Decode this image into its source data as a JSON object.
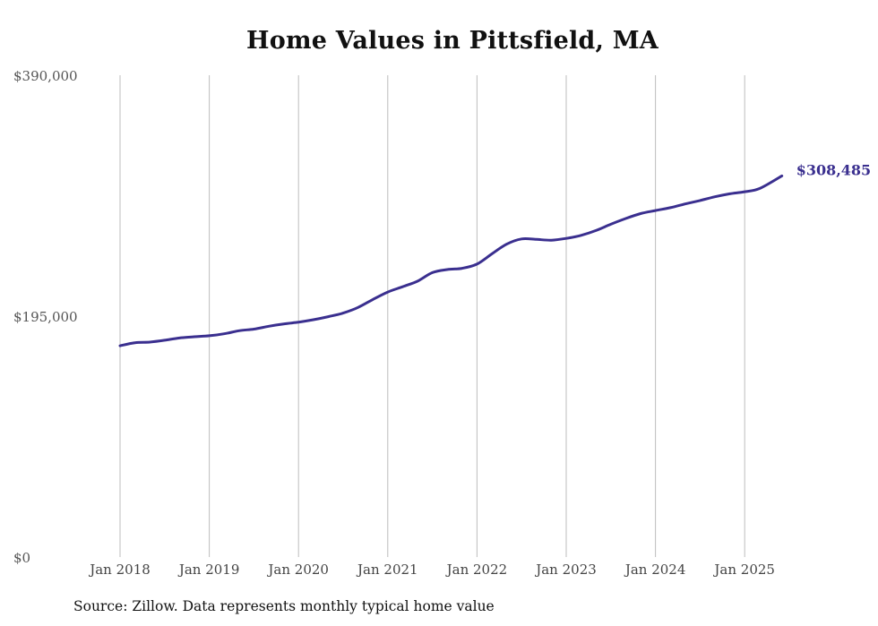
{
  "chart_data": {
    "type": "line",
    "title": "Home Values in Pittsfield, MA",
    "subtitle": "",
    "xlabel": "",
    "ylabel": "",
    "x_date_range": [
      "2018-01",
      "2025-06"
    ],
    "ylim": [
      0,
      390000
    ],
    "y_ticks": [
      0,
      195000,
      390000
    ],
    "y_tick_labels": [
      "$0",
      "$195,000",
      "$390,000"
    ],
    "x_ticks": [
      "2018-01",
      "2019-01",
      "2020-01",
      "2021-01",
      "2022-01",
      "2023-01",
      "2024-01",
      "2025-01"
    ],
    "x_tick_labels": [
      "Jan 2018",
      "Jan 2019",
      "Jan 2020",
      "Jan 2021",
      "Jan 2022",
      "Jan 2023",
      "Jan 2024",
      "Jan 2025"
    ],
    "grid": {
      "vertical": true,
      "horizontal": false
    },
    "series": [
      {
        "color": "#3a2f8f",
        "x": [
          "2018-01",
          "2018-03",
          "2018-05",
          "2018-07",
          "2018-09",
          "2018-11",
          "2019-01",
          "2019-03",
          "2019-05",
          "2019-07",
          "2019-09",
          "2019-11",
          "2020-01",
          "2020-03",
          "2020-05",
          "2020-07",
          "2020-09",
          "2020-11",
          "2021-01",
          "2021-03",
          "2021-05",
          "2021-07",
          "2021-09",
          "2021-11",
          "2022-01",
          "2022-03",
          "2022-05",
          "2022-07",
          "2022-09",
          "2022-11",
          "2023-01",
          "2023-03",
          "2023-05",
          "2023-07",
          "2023-09",
          "2023-11",
          "2024-01",
          "2024-03",
          "2024-05",
          "2024-07",
          "2024-09",
          "2024-11",
          "2025-01",
          "2025-03",
          "2025-06"
        ],
        "values": [
          171000,
          173500,
          174000,
          175500,
          177300,
          178300,
          179100,
          180700,
          183200,
          184500,
          186800,
          188700,
          190100,
          192100,
          194600,
          197500,
          202000,
          208500,
          214500,
          218800,
          223300,
          230200,
          232700,
          233700,
          237100,
          245400,
          253300,
          257500,
          257100,
          256500,
          257900,
          260400,
          264300,
          269400,
          274000,
          278000,
          280500,
          282800,
          285800,
          288600,
          291600,
          294000,
          295700,
          298300,
          308485
        ]
      }
    ],
    "end_label": "$308,485",
    "source_note": "Source: Zillow. Data represents monthly typical home value"
  }
}
